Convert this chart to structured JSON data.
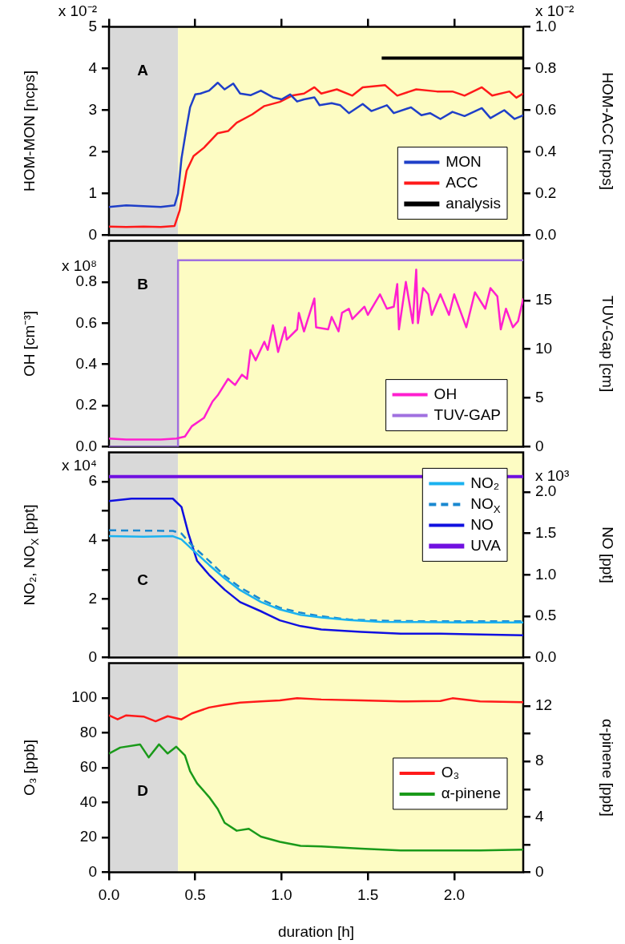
{
  "chart_data": [
    {
      "type": "line",
      "xlim": [
        0,
        2.4
      ],
      "xticks": [
        {
          "value": 0,
          "label": null
        },
        {
          "value": 0.5,
          "label": null
        },
        {
          "value": 1,
          "label": null
        },
        {
          "value": 1.5,
          "label": null
        },
        {
          "value": 2,
          "label": null
        }
      ],
      "tick_labels": "y",
      "ylabel": "HOM-MON [ncps]",
      "y2label": "HOM-ACC [ncps]",
      "ylim": [
        0,
        5
      ],
      "yticks": [
        0,
        1,
        2,
        3,
        4,
        5
      ],
      "y2lim": [
        0,
        1
      ],
      "y2ticks": [
        {
          "value": 0,
          "label": "0.0"
        },
        0.2,
        0.4,
        0.6,
        0.8,
        {
          "value": 1,
          "label": "1.0"
        }
      ],
      "legend": "bottom right",
      "annotations": [
        "A",
        "x 10⁻²",
        "x 10⁻²"
      ],
      "bands": [
        {
          "axis": "x",
          "from": 0,
          "to": 0.4,
          "color": "#d9d9d9"
        },
        {
          "axis": "x",
          "from": 0.4,
          "to": 2.4,
          "color": "#fdfcc3"
        }
      ],
      "series": [
        {
          "name": "MON",
          "color": "#1f3fc8",
          "x": [
            0,
            0.1,
            0.2,
            0.3,
            0.38,
            0.4,
            0.42,
            0.45,
            0.47,
            0.5,
            0.53,
            0.58,
            0.63,
            0.67,
            0.72,
            0.76,
            0.82,
            0.88,
            0.95,
            1.0,
            1.05,
            1.09,
            1.13,
            1.19,
            1.22,
            1.29,
            1.34,
            1.39,
            1.47,
            1.52,
            1.61,
            1.65,
            1.75,
            1.81,
            1.86,
            1.92,
            1.99,
            2.06,
            2.16,
            2.21,
            2.29,
            2.35,
            2.4
          ],
          "values": [
            0.68,
            0.72,
            0.7,
            0.68,
            0.72,
            1.0,
            1.84,
            2.6,
            3.07,
            3.38,
            3.4,
            3.47,
            3.66,
            3.5,
            3.64,
            3.4,
            3.36,
            3.47,
            3.31,
            3.26,
            3.38,
            3.21,
            3.26,
            3.31,
            3.12,
            3.17,
            3.12,
            2.93,
            3.15,
            2.98,
            3.12,
            2.93,
            3.07,
            2.88,
            2.93,
            2.79,
            2.96,
            2.86,
            3.05,
            2.81,
            3.0,
            2.79,
            2.88
          ]
        },
        {
          "name": "ACC",
          "color": "#ff1a1a",
          "axis": "y2",
          "x": [
            0,
            0.1,
            0.2,
            0.3,
            0.38,
            0.41,
            0.45,
            0.49,
            0.55,
            0.63,
            0.69,
            0.74,
            0.83,
            0.9,
            0.99,
            1.06,
            1.13,
            1.19,
            1.23,
            1.32,
            1.41,
            1.47,
            1.6,
            1.67,
            1.78,
            1.9,
            1.99,
            2.06,
            2.16,
            2.22,
            2.32,
            2.36,
            2.4
          ],
          "values": [
            0.042,
            0.04,
            0.042,
            0.04,
            0.045,
            0.12,
            0.31,
            0.38,
            0.42,
            0.49,
            0.5,
            0.54,
            0.58,
            0.62,
            0.64,
            0.67,
            0.68,
            0.71,
            0.68,
            0.7,
            0.67,
            0.71,
            0.72,
            0.67,
            0.7,
            0.69,
            0.69,
            0.67,
            0.71,
            0.67,
            0.69,
            0.66,
            0.68
          ]
        },
        {
          "name": "analysis",
          "color": "#000000",
          "x": [
            1.58,
            2.4
          ],
          "values": [
            4.25,
            4.25
          ]
        }
      ]
    },
    {
      "type": "line",
      "xlim": [
        0,
        2.4
      ],
      "tick_labels": "y",
      "ylabel": "OH [cm⁻³]",
      "y2label": "TUV-Gap [cm]",
      "ylim": [
        0,
        1
      ],
      "yticks": [
        {
          "value": 0,
          "label": "0.0"
        },
        0.2,
        0.4,
        0.6,
        0.8
      ],
      "y2lim": [
        0,
        21.1
      ],
      "y2ticks": [
        0,
        5,
        10,
        15
      ],
      "legend": "bottom right",
      "annotations": [
        "B",
        "x 10⁸"
      ],
      "bands": [
        {
          "axis": "x",
          "from": 0,
          "to": 0.4,
          "color": "#d9d9d9"
        },
        {
          "axis": "x",
          "from": 0.4,
          "to": 2.4,
          "color": "#fdfcc3"
        }
      ],
      "series": [
        {
          "name": "OH",
          "color": "#ff1fcf",
          "x": [
            0,
            0.1,
            0.2,
            0.3,
            0.39,
            0.44,
            0.48,
            0.55,
            0.6,
            0.63,
            0.69,
            0.73,
            0.77,
            0.8,
            0.82,
            0.85,
            0.9,
            0.92,
            0.95,
            0.98,
            1.02,
            1.03,
            1.09,
            1.1,
            1.13,
            1.19,
            1.2,
            1.27,
            1.29,
            1.33,
            1.35,
            1.39,
            1.41,
            1.48,
            1.5,
            1.57,
            1.61,
            1.65,
            1.67,
            1.68,
            1.72,
            1.76,
            1.78,
            1.79,
            1.82,
            1.85,
            1.87,
            1.92,
            1.97,
            2.0,
            2.07,
            2.12,
            2.18,
            2.21,
            2.25,
            2.27,
            2.3,
            2.34,
            2.37,
            2.4
          ],
          "values": [
            0.04,
            0.035,
            0.035,
            0.035,
            0.04,
            0.05,
            0.1,
            0.14,
            0.22,
            0.25,
            0.33,
            0.3,
            0.35,
            0.33,
            0.47,
            0.42,
            0.51,
            0.47,
            0.59,
            0.46,
            0.58,
            0.52,
            0.57,
            0.65,
            0.56,
            0.72,
            0.58,
            0.57,
            0.63,
            0.56,
            0.65,
            0.67,
            0.62,
            0.68,
            0.64,
            0.74,
            0.67,
            0.68,
            0.79,
            0.57,
            0.8,
            0.6,
            0.86,
            0.6,
            0.77,
            0.74,
            0.64,
            0.74,
            0.64,
            0.74,
            0.58,
            0.75,
            0.67,
            0.77,
            0.73,
            0.57,
            0.67,
            0.58,
            0.61,
            0.72
          ]
        },
        {
          "name": "TUV-GAP",
          "color": "#a070e0",
          "axis": "y2",
          "x": [
            0,
            0.4,
            0.4,
            2.4
          ],
          "values": [
            0,
            0,
            19.1,
            19.1
          ]
        }
      ]
    },
    {
      "type": "line",
      "xlim": [
        0,
        2.4
      ],
      "tick_labels": "y",
      "ylabel": "NO₂, NO$_{X}$ [ppt]",
      "y2label": "NO [ppt]",
      "ylim": [
        0,
        7
      ],
      "yticks": [
        0,
        {
          "value": 1,
          "label": null
        },
        2,
        {
          "value": 3,
          "label": null
        },
        4,
        {
          "value": 5,
          "label": null
        },
        6
      ],
      "y2lim": [
        0,
        2.48
      ],
      "y2ticks": [
        {
          "value": 0,
          "label": "0.0"
        },
        0.5,
        {
          "value": 1,
          "label": "1.0"
        },
        1.5,
        {
          "value": 2,
          "label": "2.0"
        }
      ],
      "legend": "top right",
      "annotations": [
        "C",
        "x 10⁴",
        "x 10³"
      ],
      "bands": [
        {
          "axis": "x",
          "from": 0,
          "to": 0.4,
          "color": "#d9d9d9"
        },
        {
          "axis": "x",
          "from": 0.4,
          "to": 2.4,
          "color": "#fdfcc3"
        }
      ],
      "series": [
        {
          "name": "NO₂",
          "color": "#1ab2f0",
          "x": [
            0,
            0.2,
            0.37,
            0.42,
            0.48,
            0.58,
            0.67,
            0.76,
            0.88,
            0.99,
            1.11,
            1.23,
            1.39,
            1.57,
            1.8,
            2.04,
            2.4
          ],
          "values": [
            4.14,
            4.12,
            4.14,
            4.03,
            3.7,
            3.16,
            2.7,
            2.3,
            1.9,
            1.64,
            1.46,
            1.37,
            1.28,
            1.22,
            1.21,
            1.2,
            1.2
          ]
        },
        {
          "name": "NO$_{X}$",
          "color": "#1a88d0",
          "line_style": "dashed",
          "x": [
            0,
            0.2,
            0.37,
            0.42,
            0.48,
            0.58,
            0.67,
            0.76,
            0.88,
            0.99,
            1.11,
            1.23,
            1.39,
            1.57,
            1.8,
            2.04,
            2.4
          ],
          "values": [
            4.34,
            4.33,
            4.32,
            4.23,
            3.83,
            3.3,
            2.79,
            2.39,
            1.99,
            1.7,
            1.53,
            1.41,
            1.3,
            1.26,
            1.24,
            1.24,
            1.24
          ]
        },
        {
          "name": "NO",
          "color": "#1010e0",
          "axis": "y2",
          "x": [
            0,
            0.13,
            0.37,
            0.42,
            0.46,
            0.51,
            0.58,
            0.67,
            0.76,
            0.88,
            0.99,
            1.11,
            1.23,
            1.46,
            1.69,
            1.92,
            2.15,
            2.4
          ],
          "values": [
            1.89,
            1.92,
            1.92,
            1.82,
            1.5,
            1.17,
            1.0,
            0.82,
            0.67,
            0.56,
            0.45,
            0.38,
            0.34,
            0.31,
            0.29,
            0.29,
            0.28,
            0.27
          ]
        },
        {
          "name": "UVA",
          "color": "#7010e0",
          "x": [
            0,
            2.4
          ],
          "values": [
            6.17,
            6.17
          ]
        }
      ]
    },
    {
      "type": "line",
      "xlim": [
        0,
        2.4
      ],
      "xticks": [
        {
          "value": 0,
          "label": "0.0"
        },
        {
          "value": 0.5,
          "label": "0.5"
        },
        {
          "value": 1,
          "label": "1.0"
        },
        {
          "value": 1.5,
          "label": "1.5"
        },
        {
          "value": 2,
          "label": "2.0"
        }
      ],
      "xlabel": "duration [h]",
      "ylabel": "O₃ [ppb]",
      "y2label": "α-pinene [ppb]",
      "ylim": [
        0,
        120
      ],
      "yticks": [
        0,
        20,
        40,
        60,
        80,
        100
      ],
      "y2lim": [
        0,
        15.1
      ],
      "y2ticks": [
        0,
        {
          "value": 2,
          "label": null
        },
        4,
        {
          "value": 6,
          "label": null
        },
        8,
        {
          "value": 10,
          "label": null
        },
        12
      ],
      "legend": "right",
      "annotations": [
        "D"
      ],
      "bands": [
        {
          "axis": "x",
          "from": 0,
          "to": 0.4,
          "color": "#d9d9d9"
        },
        {
          "axis": "x",
          "from": 0.4,
          "to": 2.4,
          "color": "#fdfcc3"
        }
      ],
      "series": [
        {
          "name": "O₃",
          "color": "#ff1a1a",
          "x": [
            0,
            0.05,
            0.1,
            0.2,
            0.27,
            0.34,
            0.42,
            0.48,
            0.58,
            0.67,
            0.76,
            0.88,
            0.99,
            1.09,
            1.23,
            1.46,
            1.69,
            1.92,
            1.99,
            2.15,
            2.4
          ],
          "values": [
            90,
            87.7,
            90,
            89.3,
            86.6,
            89.5,
            87.7,
            91.1,
            94.5,
            96.1,
            97.3,
            98,
            98.6,
            99.8,
            99.1,
            98.6,
            98,
            98.2,
            99.8,
            98,
            97.5
          ]
        },
        {
          "name": "α-pinene",
          "color": "#1a9a1a",
          "axis": "y2",
          "x": [
            0,
            0.065,
            0.18,
            0.23,
            0.29,
            0.34,
            0.39,
            0.44,
            0.47,
            0.51,
            0.58,
            0.63,
            0.67,
            0.74,
            0.81,
            0.88,
            0.99,
            1.11,
            1.23,
            1.46,
            1.69,
            1.92,
            2.15,
            2.4
          ],
          "values": [
            8.57,
            9.0,
            9.23,
            8.29,
            9.23,
            8.57,
            9.06,
            8.43,
            7.29,
            6.43,
            5.43,
            4.57,
            3.57,
            3.0,
            3.14,
            2.57,
            2.2,
            1.91,
            1.86,
            1.71,
            1.57,
            1.57,
            1.57,
            1.63
          ]
        }
      ]
    }
  ]
}
